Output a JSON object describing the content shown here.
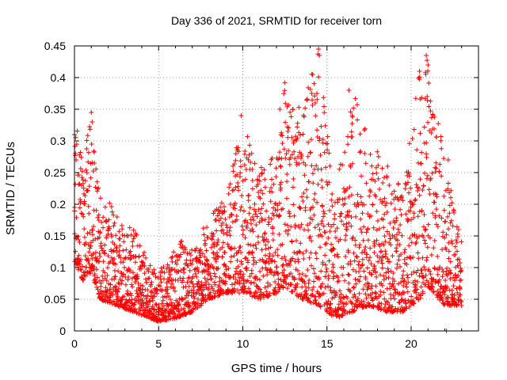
{
  "chart_data": {
    "type": "scatter",
    "title": "Day 336 of 2021, SRMTID for receiver torn",
    "xlabel": "GPS time / hours",
    "ylabel": "SRMTID / TECUs",
    "xlim": [
      0,
      24
    ],
    "ylim": [
      0,
      0.45
    ],
    "xticks": [
      0,
      5,
      10,
      15,
      20
    ],
    "yticks": [
      0,
      0.05,
      0.1,
      0.15,
      0.2,
      0.25,
      0.3,
      0.35,
      0.4,
      0.45
    ],
    "xtick_labels": [
      "0",
      "5",
      "10",
      "15",
      "20"
    ],
    "ytick_labels": [
      "0",
      "0.05",
      "0.1",
      "0.15",
      "0.2",
      "0.25",
      "0.3",
      "0.35",
      "0.4",
      "0.45"
    ],
    "grid": true,
    "marker": "plus",
    "color": "#ff0000",
    "series": [
      {
        "name": "SRMTID",
        "x_range": [
          0.0,
          23.0
        ],
        "approx_points": 2800,
        "envelope": [
          {
            "x": 0.0,
            "low": 0.11,
            "high": 0.34
          },
          {
            "x": 0.5,
            "low": 0.08,
            "high": 0.27
          },
          {
            "x": 1.0,
            "low": 0.09,
            "high": 0.35
          },
          {
            "x": 1.5,
            "low": 0.05,
            "high": 0.22
          },
          {
            "x": 2.5,
            "low": 0.04,
            "high": 0.19
          },
          {
            "x": 3.5,
            "low": 0.03,
            "high": 0.17
          },
          {
            "x": 4.5,
            "low": 0.02,
            "high": 0.11
          },
          {
            "x": 5.0,
            "low": 0.015,
            "high": 0.09
          },
          {
            "x": 6.0,
            "low": 0.02,
            "high": 0.15
          },
          {
            "x": 7.0,
            "low": 0.03,
            "high": 0.13
          },
          {
            "x": 8.0,
            "low": 0.05,
            "high": 0.18
          },
          {
            "x": 9.0,
            "low": 0.06,
            "high": 0.21
          },
          {
            "x": 10.0,
            "low": 0.06,
            "high": 0.34
          },
          {
            "x": 11.0,
            "low": 0.05,
            "high": 0.26
          },
          {
            "x": 12.0,
            "low": 0.06,
            "high": 0.28
          },
          {
            "x": 12.5,
            "low": 0.07,
            "high": 0.39
          },
          {
            "x": 13.5,
            "low": 0.05,
            "high": 0.35
          },
          {
            "x": 14.5,
            "low": 0.04,
            "high": 0.445
          },
          {
            "x": 15.5,
            "low": 0.02,
            "high": 0.22
          },
          {
            "x": 16.5,
            "low": 0.03,
            "high": 0.38
          },
          {
            "x": 17.5,
            "low": 0.04,
            "high": 0.31
          },
          {
            "x": 18.5,
            "low": 0.03,
            "high": 0.27
          },
          {
            "x": 19.5,
            "low": 0.03,
            "high": 0.22
          },
          {
            "x": 20.5,
            "low": 0.05,
            "high": 0.41
          },
          {
            "x": 21.0,
            "low": 0.07,
            "high": 0.435
          },
          {
            "x": 22.0,
            "low": 0.04,
            "high": 0.27
          },
          {
            "x": 23.0,
            "low": 0.04,
            "high": 0.14
          }
        ],
        "highlights": [
          {
            "x": 0.0,
            "y": 0.31
          },
          {
            "x": 0.1,
            "y": 0.27
          },
          {
            "x": 1.0,
            "y": 0.345
          },
          {
            "x": 1.05,
            "y": 0.33
          },
          {
            "x": 9.9,
            "y": 0.34
          },
          {
            "x": 12.5,
            "y": 0.392
          },
          {
            "x": 12.2,
            "y": 0.35
          },
          {
            "x": 14.1,
            "y": 0.375
          },
          {
            "x": 14.3,
            "y": 0.36
          },
          {
            "x": 14.5,
            "y": 0.445
          },
          {
            "x": 14.55,
            "y": 0.435
          },
          {
            "x": 14.4,
            "y": 0.375
          },
          {
            "x": 16.3,
            "y": 0.38
          },
          {
            "x": 16.5,
            "y": 0.34
          },
          {
            "x": 20.5,
            "y": 0.41
          },
          {
            "x": 20.9,
            "y": 0.435
          },
          {
            "x": 21.0,
            "y": 0.42
          },
          {
            "x": 20.95,
            "y": 0.37
          },
          {
            "x": 22.1,
            "y": 0.0
          },
          {
            "x": 22.2,
            "y": 0.27
          }
        ]
      }
    ]
  }
}
